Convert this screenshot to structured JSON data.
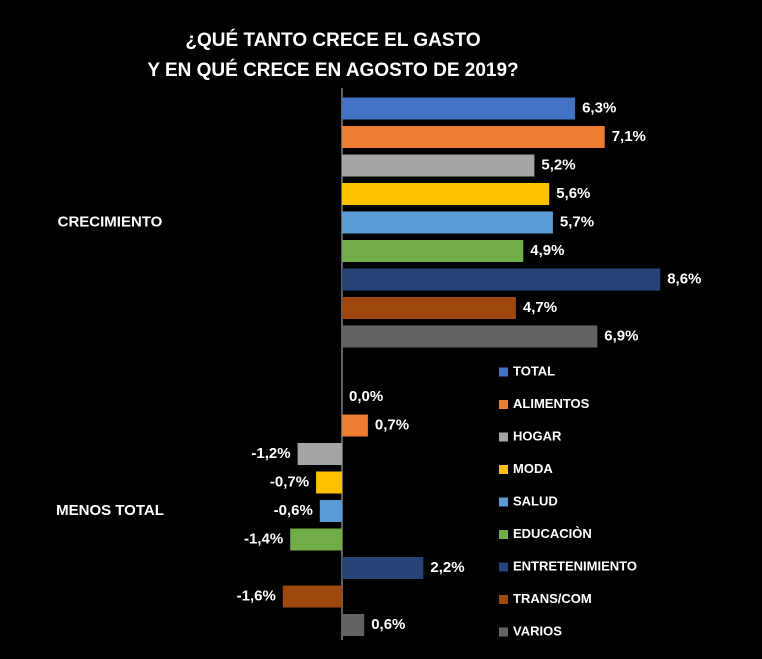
{
  "chart_data": {
    "type": "bar",
    "orientation": "horizontal",
    "title": [
      "¿QUÉ TANTO CRECE EL GASTO",
      "Y EN QUÉ CRECE EN AGOSTO DE 2019?"
    ],
    "categories": [
      "CRECIMIENTO",
      "MENOS TOTAL"
    ],
    "legend": "right",
    "series": [
      {
        "name": "TOTAL",
        "color": "#4472c4",
        "values": [
          6.3,
          0.0
        ],
        "value_labels": [
          "6,3%",
          "0,0%"
        ]
      },
      {
        "name": "ALIMENTOS",
        "color": "#ed7d31",
        "values": [
          7.1,
          0.7
        ],
        "value_labels": [
          "7,1%",
          "0,7%"
        ]
      },
      {
        "name": "HOGAR",
        "color": "#a5a5a5",
        "values": [
          5.2,
          -1.2
        ],
        "value_labels": [
          "5,2%",
          "-1,2%"
        ]
      },
      {
        "name": "MODA",
        "color": "#ffc000",
        "values": [
          5.6,
          -0.7
        ],
        "value_labels": [
          "5,6%",
          "-0,7%"
        ]
      },
      {
        "name": "SALUD",
        "color": "#5b9bd5",
        "values": [
          5.7,
          -0.6
        ],
        "value_labels": [
          "5,7%",
          "-0,6%"
        ]
      },
      {
        "name": "EDUCACIÒN",
        "color": "#70ad47",
        "values": [
          4.9,
          -1.4
        ],
        "value_labels": [
          "4,9%",
          "-1,4%"
        ]
      },
      {
        "name": "ENTRETENIMIENTO",
        "color": "#264478",
        "values": [
          8.6,
          2.2
        ],
        "value_labels": [
          "8,6%",
          "2,2%"
        ]
      },
      {
        "name": "TRANS/COM",
        "color": "#9e480e",
        "values": [
          4.7,
          -1.6
        ],
        "value_labels": [
          "4,7%",
          "-1,6%"
        ]
      },
      {
        "name": "VARIOS",
        "color": "#636363",
        "values": [
          6.9,
          0.6
        ],
        "value_labels": [
          "6,9%",
          "0,6%"
        ]
      }
    ]
  }
}
